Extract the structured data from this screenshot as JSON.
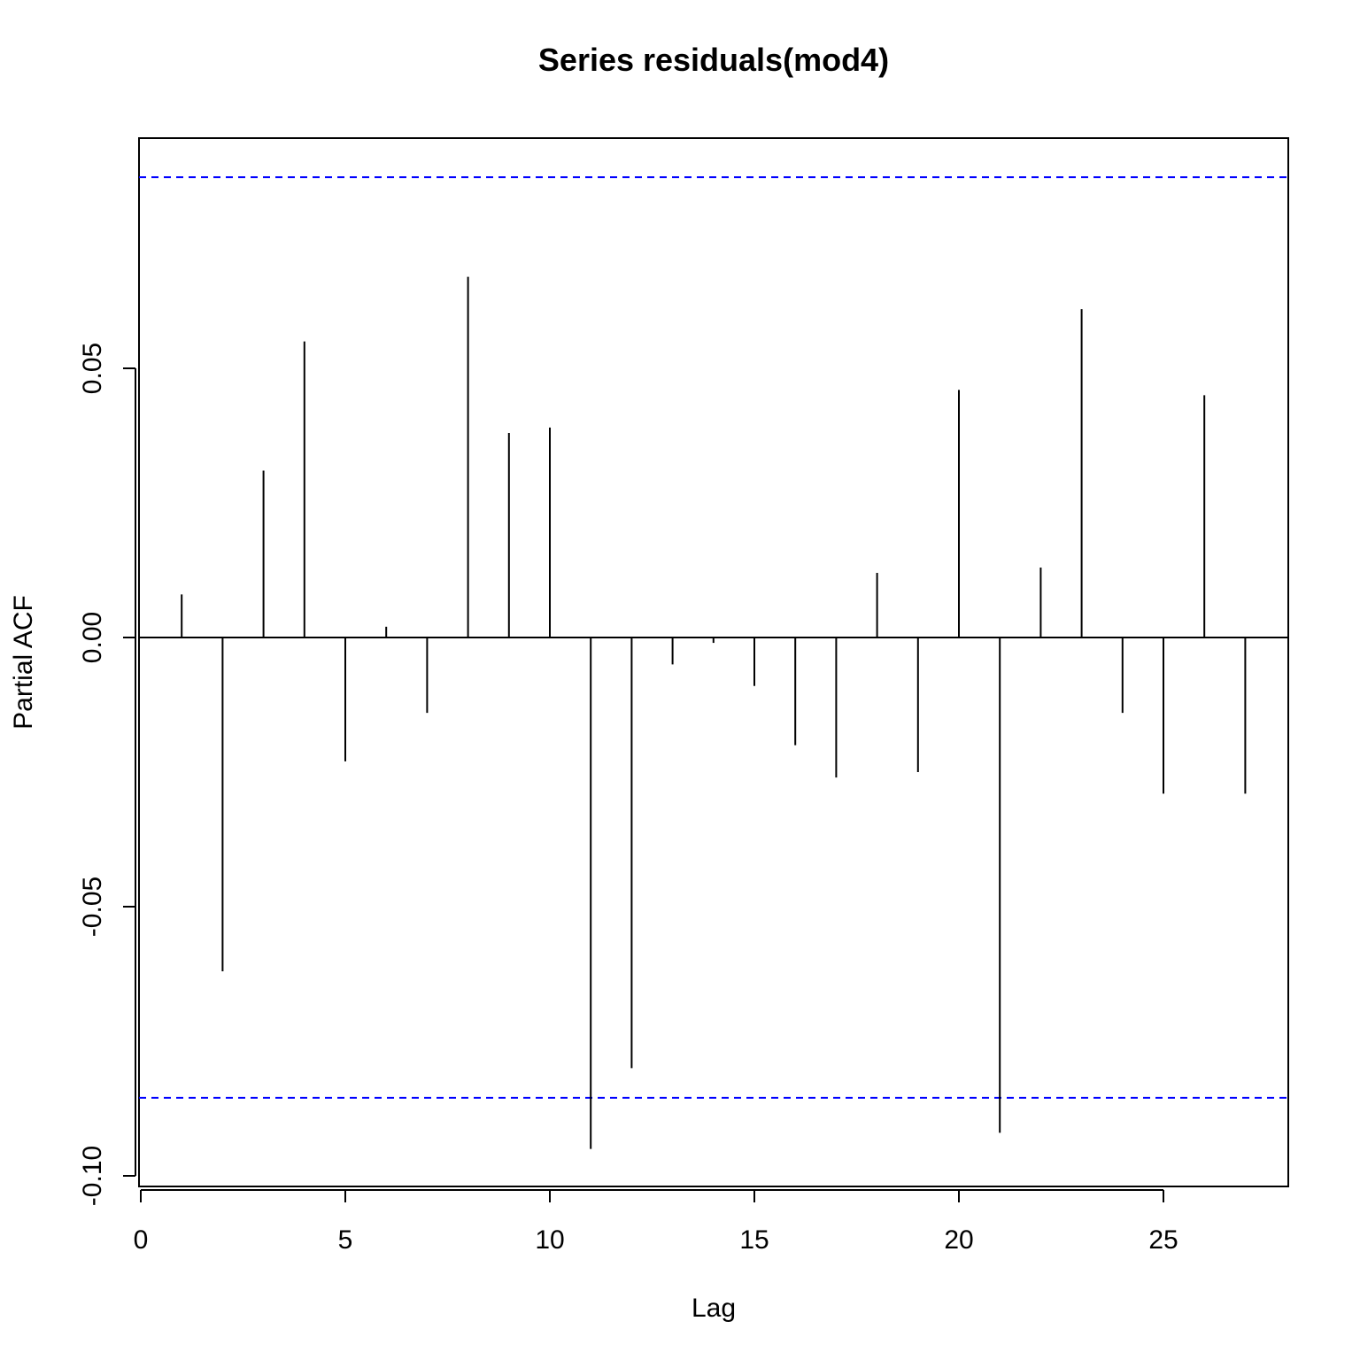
{
  "chart_data": {
    "type": "bar",
    "title": "Series  residuals(mod4)",
    "xlabel": "Lag",
    "ylabel": "Partial ACF",
    "xlim": [
      0,
      28
    ],
    "ylim": [
      -0.102,
      0.092
    ],
    "x_ticks": [
      0,
      5,
      10,
      15,
      20,
      25
    ],
    "y_ticks": [
      -0.1,
      -0.05,
      0.0,
      0.05
    ],
    "y_tick_labels": [
      "-0.10",
      "-0.05",
      "0.00",
      "0.05"
    ],
    "lags": [
      1,
      2,
      3,
      4,
      5,
      6,
      7,
      8,
      9,
      10,
      11,
      12,
      13,
      14,
      15,
      16,
      17,
      18,
      19,
      20,
      21,
      22,
      23,
      24,
      25,
      26,
      27
    ],
    "values": [
      0.008,
      -0.062,
      0.031,
      0.055,
      -0.023,
      0.002,
      -0.014,
      0.067,
      0.038,
      0.039,
      -0.095,
      -0.08,
      -0.005,
      -0.001,
      -0.009,
      -0.02,
      -0.026,
      0.012,
      -0.025,
      0.046,
      -0.092,
      0.013,
      0.061,
      -0.014,
      -0.029,
      0.045,
      -0.029
    ],
    "confidence_bound": 0.0855,
    "bar_color": "#000000",
    "ci_color": "#0000ff",
    "grid": false
  }
}
